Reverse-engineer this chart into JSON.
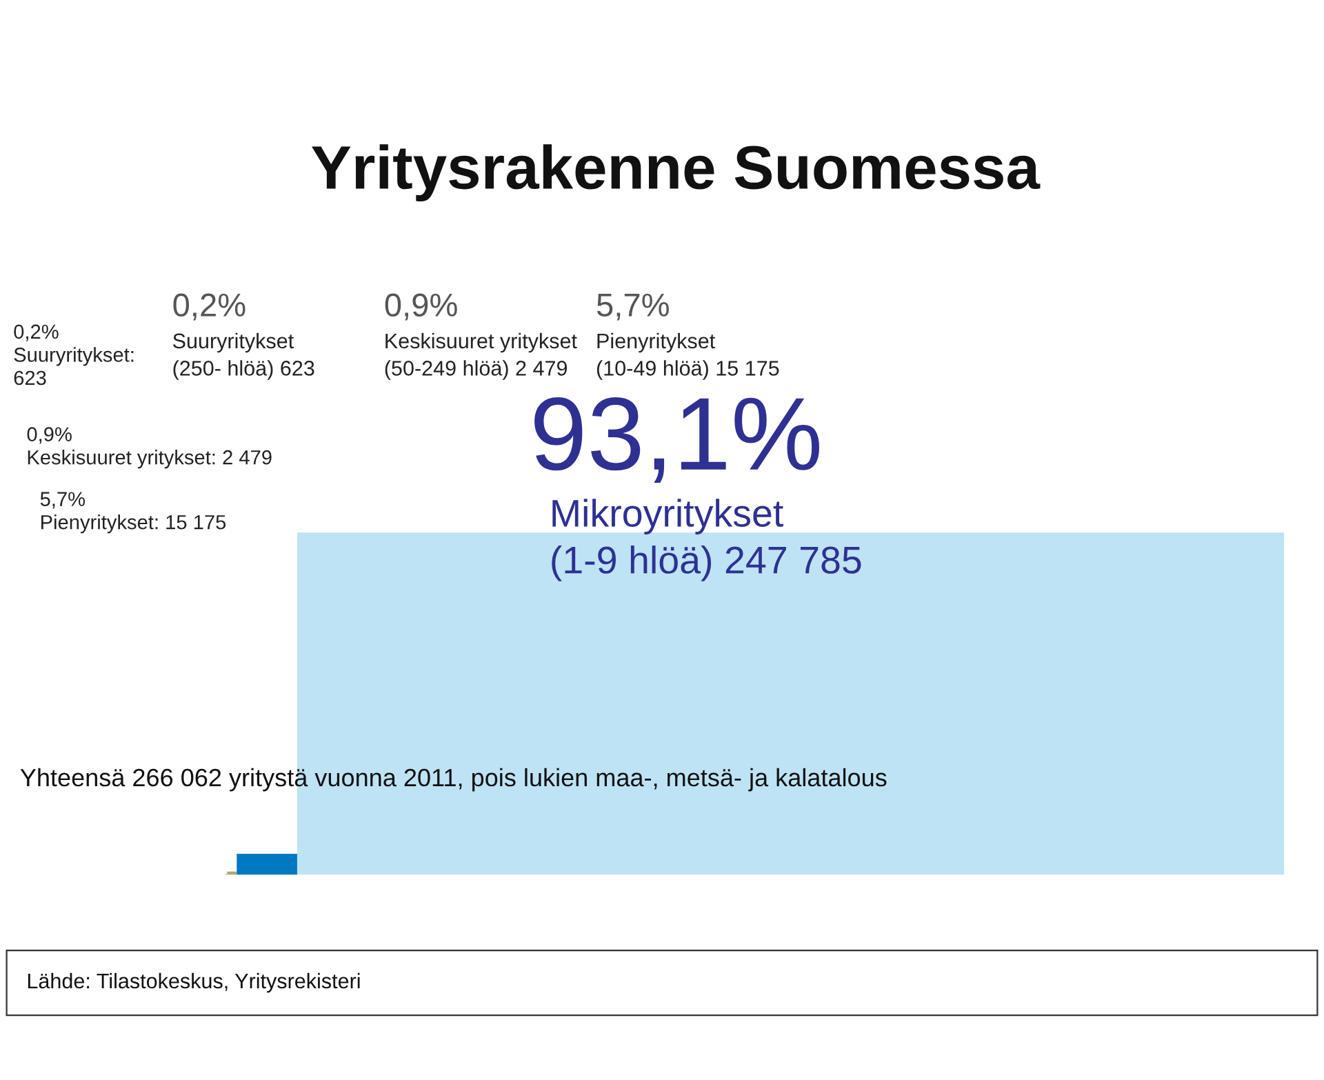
{
  "chart_data": {
    "type": "other",
    "title": "Yritysrakenne Suomessa",
    "categories": [
      "Suuryritykset\n(250- hlöä) 623",
      "Keskisuuret yritykset\n(50-249 hlöä) 2 479",
      "Pienyritykset\n(10-49 hlöä) 15 175",
      "Mikroyritykset\n(1-9 hlöä) 247 785"
    ],
    "values": [
      0.2,
      0.9,
      5.7,
      93.1
    ],
    "value_labels": [
      "0,2%",
      "0,9%",
      "5,7%",
      "93,1%"
    ],
    "colors": [
      "#0e9ed9",
      "#b1a878",
      "#0079c1",
      "#bde3f5"
    ],
    "annotations": [
      "0,2%\nSuuryritykset:\n623",
      "0,9%\nKeskisuuret yritykset: 2 479",
      "5,7%\nPienyritykset: 15 175",
      "Yhteensä 266 062 yritystä vuonna 2011, pois lukien maa-, metsä- ja kalatalous",
      "Lähde: Tilastokeskus, Yritysrekisteri"
    ]
  }
}
